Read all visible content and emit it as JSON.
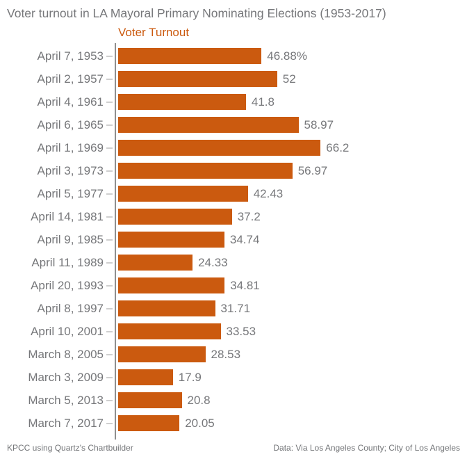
{
  "title": "Voter turnout in LA Mayoral Primary Nominating Elections (1953-2017)",
  "legend": {
    "label": "Voter Turnout"
  },
  "footer": {
    "left": "KPCC using Quartz's Chartbuilder",
    "right": "Data: Via Los Angeles County; City of Los Angeles"
  },
  "colors": {
    "bar": "#CB5A0F",
    "legend_text": "#CB5A0F",
    "text_gray": "#76777A",
    "axis_line": "#8F8F8F",
    "tick": "#CFCFCF"
  },
  "chart_data": {
    "type": "bar",
    "orientation": "horizontal",
    "title": "Voter turnout in LA Mayoral Primary Nominating Elections (1953-2017)",
    "series_name": "Voter Turnout",
    "xlabel": "",
    "ylabel": "",
    "grid": false,
    "legend_position": "top",
    "categories": [
      "April 7, 1953",
      "April 2, 1957",
      "April 4, 1961",
      "April 6, 1965",
      "April 1, 1969",
      "April 3, 1973",
      "April 5, 1977",
      "April 14, 1981",
      "April 9, 1985",
      "April 11, 1989",
      "April 20, 1993",
      "April 8, 1997",
      "April 10, 2001",
      "March 8, 2005",
      "March 3, 2009",
      "March 5, 2013",
      "March 7, 2017"
    ],
    "values": [
      46.88,
      52,
      41.8,
      58.97,
      66.2,
      56.97,
      42.43,
      37.2,
      34.74,
      24.33,
      34.81,
      31.71,
      33.53,
      28.53,
      17.9,
      20.8,
      20.05
    ],
    "value_labels": [
      "46.88%",
      "52",
      "41.8",
      "58.97",
      "66.2",
      "56.97",
      "42.43",
      "37.2",
      "34.74",
      "24.33",
      "34.81",
      "31.71",
      "33.53",
      "28.53",
      "17.9",
      "20.8",
      "20.05"
    ],
    "unit": "percent"
  }
}
